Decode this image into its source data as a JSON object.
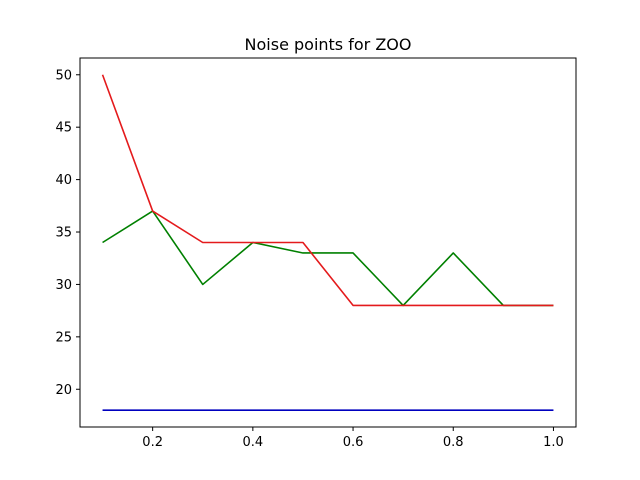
{
  "chart_data": {
    "type": "line",
    "title": "Noise points for ZOO",
    "xlabel": "",
    "ylabel": "",
    "x": [
      0.1,
      0.2,
      0.3,
      0.4,
      0.5,
      0.6,
      0.7,
      0.8,
      0.9,
      1.0
    ],
    "xlim": [
      0.055,
      1.045
    ],
    "ylim": [
      16.4,
      51.6
    ],
    "xticks": [
      0.2,
      0.4,
      0.6,
      0.8,
      1.0
    ],
    "xtick_labels": [
      "0.2",
      "0.4",
      "0.6",
      "0.8",
      "1.0"
    ],
    "yticks": [
      20,
      25,
      30,
      35,
      40,
      45,
      50
    ],
    "ytick_labels": [
      "20",
      "25",
      "30",
      "35",
      "40",
      "45",
      "50"
    ],
    "grid": false,
    "legend": "none",
    "series": [
      {
        "name": "blue",
        "color": "#0000bf",
        "values": [
          18,
          18,
          18,
          18,
          18,
          18,
          18,
          18,
          18,
          18
        ]
      },
      {
        "name": "green",
        "color": "#008000",
        "values": [
          34,
          37,
          30,
          34,
          33,
          33,
          28,
          33,
          28,
          28
        ]
      },
      {
        "name": "red",
        "color": "#e41a1c",
        "values": [
          50,
          37,
          34,
          34,
          34,
          28,
          28,
          28,
          28,
          28
        ]
      }
    ]
  }
}
